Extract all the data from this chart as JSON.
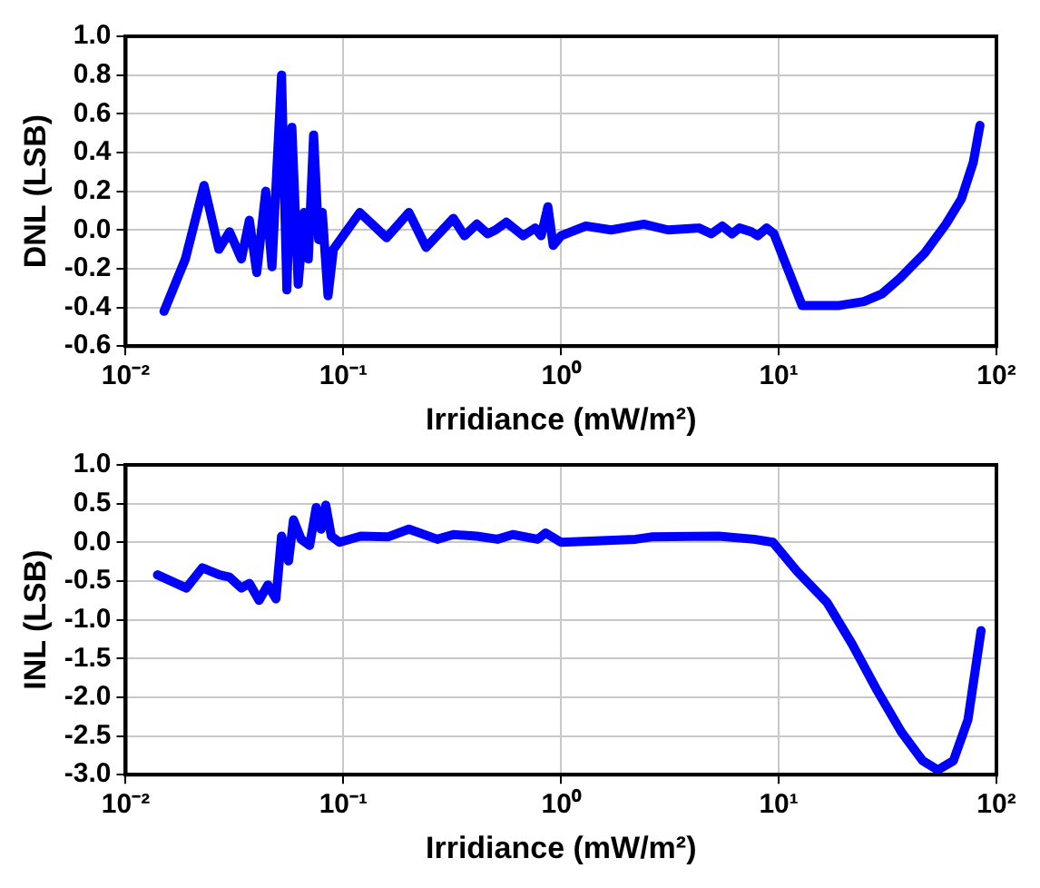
{
  "chart_data": [
    {
      "type": "line",
      "xlabel": "Irridiance (mW/m²)",
      "ylabel": "DNL (LSB)",
      "log": "x",
      "grid": true,
      "marker": "none",
      "line_style": "solid",
      "xlim": [
        0.01,
        100
      ],
      "xticks": [
        {
          "value": 0.01,
          "label": "10⁻²"
        },
        {
          "value": 0.1,
          "label": "10⁻¹"
        },
        {
          "value": 1,
          "label": "10⁰"
        },
        {
          "value": 10,
          "label": "10¹"
        },
        {
          "value": 100,
          "label": "10²"
        }
      ],
      "ylim": [
        -0.6,
        1.0
      ],
      "yticks": [
        {
          "value": -0.6,
          "label": "-0.6"
        },
        {
          "value": -0.4,
          "label": "-0.4"
        },
        {
          "value": -0.2,
          "label": "-0.2"
        },
        {
          "value": 0,
          "label": "0.0"
        },
        {
          "value": 0.2,
          "label": "0.2"
        },
        {
          "value": 0.4,
          "label": "0.4"
        },
        {
          "value": 0.6,
          "label": "0.6"
        },
        {
          "value": 0.8,
          "label": "0.8"
        },
        {
          "value": 1.0,
          "label": "1.0"
        }
      ],
      "series": [
        {
          "color": "#0000ff",
          "x": [
            0.015,
            0.0188,
            0.0229,
            0.0268,
            0.03,
            0.034,
            0.037,
            0.04,
            0.044,
            0.047,
            0.052,
            0.055,
            0.058,
            0.062,
            0.066,
            0.069,
            0.073,
            0.077,
            0.08,
            0.085,
            0.09,
            0.119,
            0.158,
            0.2,
            0.24,
            0.32,
            0.36,
            0.41,
            0.46,
            0.5,
            0.56,
            0.67,
            0.76,
            0.81,
            0.87,
            0.92,
            1.0,
            1.3,
            1.7,
            2.4,
            3.1,
            4.3,
            4.9,
            5.5,
            6.1,
            6.6,
            7.5,
            8.0,
            8.8,
            9.5,
            12.8,
            19,
            24.6,
            29.8,
            36,
            46.8,
            58.6,
            69,
            78.3,
            84
          ],
          "values": [
            -0.42,
            -0.15,
            0.23,
            -0.1,
            -0.01,
            -0.15,
            0.05,
            -0.22,
            0.2,
            -0.19,
            0.8,
            -0.31,
            0.53,
            -0.28,
            0.09,
            -0.15,
            0.49,
            -0.05,
            0.09,
            -0.34,
            -0.1,
            0.09,
            -0.04,
            0.09,
            -0.09,
            0.06,
            -0.03,
            0.03,
            -0.02,
            0.0,
            0.04,
            -0.03,
            0.01,
            -0.03,
            0.12,
            -0.08,
            -0.03,
            0.02,
            0.0,
            0.03,
            0.0,
            0.01,
            -0.02,
            0.02,
            -0.02,
            0.01,
            -0.01,
            -0.03,
            0.01,
            -0.02,
            -0.39,
            -0.39,
            -0.37,
            -0.33,
            -0.25,
            -0.12,
            0.03,
            0.16,
            0.35,
            0.54
          ]
        }
      ]
    },
    {
      "type": "line",
      "xlabel": "Irridiance (mW/m²)",
      "ylabel": "INL (LSB)",
      "log": "x",
      "grid": true,
      "marker": "none",
      "line_style": "solid",
      "xlim": [
        0.01,
        100
      ],
      "xticks": [
        {
          "value": 0.01,
          "label": "10⁻²"
        },
        {
          "value": 0.1,
          "label": "10⁻¹"
        },
        {
          "value": 1,
          "label": "10⁰"
        },
        {
          "value": 10,
          "label": "10¹"
        },
        {
          "value": 100,
          "label": "10²"
        }
      ],
      "ylim": [
        -3.0,
        1.0
      ],
      "yticks": [
        {
          "value": -3.0,
          "label": "-3.0"
        },
        {
          "value": -2.5,
          "label": "-2.5"
        },
        {
          "value": -2.0,
          "label": "-2.0"
        },
        {
          "value": -1.5,
          "label": "-1.5"
        },
        {
          "value": -1.0,
          "label": "-1.0"
        },
        {
          "value": -0.5,
          "label": "-0.5"
        },
        {
          "value": 0,
          "label": "0.0"
        },
        {
          "value": 0.5,
          "label": "0.5"
        },
        {
          "value": 1.0,
          "label": "1.0"
        }
      ],
      "series": [
        {
          "color": "#0000ff",
          "x": [
            0.014,
            0.019,
            0.0225,
            0.027,
            0.03,
            0.034,
            0.037,
            0.041,
            0.045,
            0.049,
            0.052,
            0.056,
            0.059,
            0.064,
            0.07,
            0.075,
            0.079,
            0.083,
            0.088,
            0.096,
            0.12,
            0.16,
            0.2,
            0.27,
            0.32,
            0.41,
            0.51,
            0.6,
            0.78,
            0.85,
            1.0,
            2.2,
            2.6,
            5.3,
            7.7,
            9.4,
            12.1,
            16.7,
            21.7,
            28.4,
            36.6,
            45.8,
            53.8,
            63.4,
            74,
            85
          ],
          "values": [
            -0.42,
            -0.59,
            -0.33,
            -0.42,
            -0.45,
            -0.59,
            -0.53,
            -0.75,
            -0.55,
            -0.73,
            0.08,
            -0.24,
            0.29,
            0.04,
            -0.04,
            0.45,
            0.17,
            0.48,
            0.08,
            0.0,
            0.08,
            0.07,
            0.17,
            0.04,
            0.1,
            0.08,
            0.04,
            0.1,
            0.04,
            0.12,
            0.0,
            0.04,
            0.07,
            0.08,
            0.04,
            0.0,
            -0.37,
            -0.78,
            -1.31,
            -1.92,
            -2.45,
            -2.82,
            -2.94,
            -2.82,
            -2.29,
            -1.14
          ]
        }
      ]
    }
  ]
}
